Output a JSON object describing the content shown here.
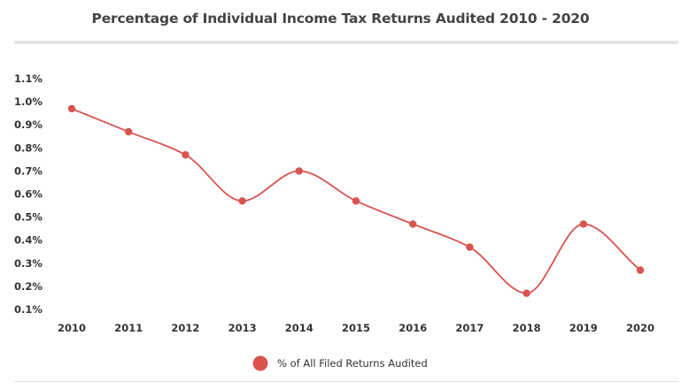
{
  "chart_data": {
    "type": "line",
    "title": "Percentage of Individual Income Tax Returns Audited 2010 - 2020",
    "x": [
      "2010",
      "2011",
      "2012",
      "2013",
      "2014",
      "2015",
      "2016",
      "2017",
      "2018",
      "2019",
      "2020"
    ],
    "y_ticks": [
      "0.1%",
      "0.2%",
      "0.3%",
      "0.4%",
      "0.5%",
      "0.6%",
      "0.7%",
      "0.8%",
      "0.9%",
      "1.0%",
      "1.1%"
    ],
    "ylim": [
      0.1,
      1.1
    ],
    "series": [
      {
        "name": "% of All Filed Returns Audited",
        "color": "#d9534f",
        "values": [
          0.97,
          0.87,
          0.77,
          0.57,
          0.7,
          0.57,
          0.47,
          0.37,
          0.17,
          0.47,
          0.27
        ]
      }
    ],
    "smooth": true,
    "grid": false,
    "legend": "bottom-center"
  }
}
